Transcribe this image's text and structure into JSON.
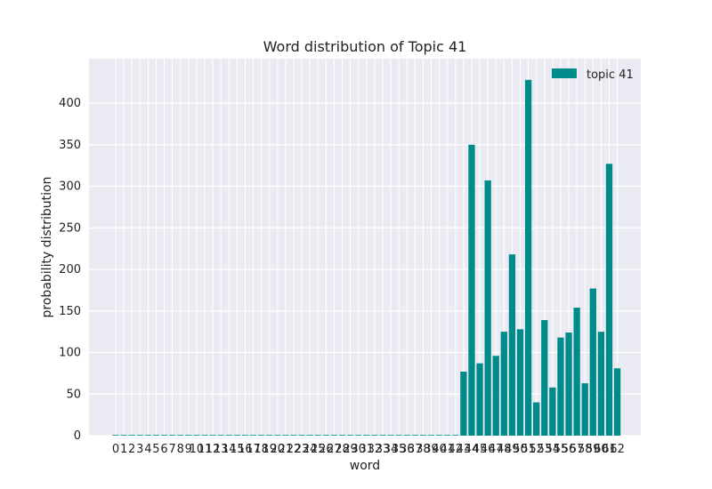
{
  "chart_data": {
    "type": "bar",
    "title": "Word distribution of Topic 41",
    "xlabel": "word",
    "ylabel": "probability distribution",
    "categories": [
      "0",
      "1",
      "2",
      "3",
      "4",
      "5",
      "6",
      "7",
      "8",
      "9",
      "10",
      "11",
      "12",
      "13",
      "14",
      "15",
      "16",
      "17",
      "18",
      "19",
      "20",
      "21",
      "22",
      "23",
      "24",
      "25",
      "26",
      "27",
      "28",
      "29",
      "30",
      "31",
      "32",
      "33",
      "34",
      "35",
      "36",
      "37",
      "38",
      "39",
      "40",
      "41",
      "42",
      "43",
      "44",
      "45",
      "46",
      "47",
      "48",
      "49",
      "50",
      "51",
      "52",
      "53",
      "54",
      "55",
      "56",
      "57",
      "58",
      "59",
      "60",
      "61",
      "62"
    ],
    "series": [
      {
        "name": "topic 41",
        "color": "#008b8b",
        "values": [
          0,
          0,
          0,
          0,
          0,
          0,
          0,
          0,
          0,
          0,
          0,
          0,
          0,
          0,
          0,
          0,
          0,
          0,
          0,
          0,
          0,
          0,
          0,
          0,
          0,
          0,
          0,
          0,
          0,
          0,
          0,
          0,
          0,
          0,
          0,
          0,
          0,
          0,
          0,
          0,
          0,
          0,
          0,
          77,
          350,
          87,
          307,
          96,
          125,
          218,
          128,
          428,
          40,
          139,
          58,
          118,
          124,
          154,
          63,
          177,
          125,
          327,
          81
        ]
      }
    ],
    "ylim": [
      0,
      450
    ],
    "yticks": [
      0,
      50,
      100,
      150,
      200,
      250,
      300,
      350,
      400
    ],
    "grid": true,
    "legend_position": "top-right",
    "background_color": "#eaeaf2"
  }
}
